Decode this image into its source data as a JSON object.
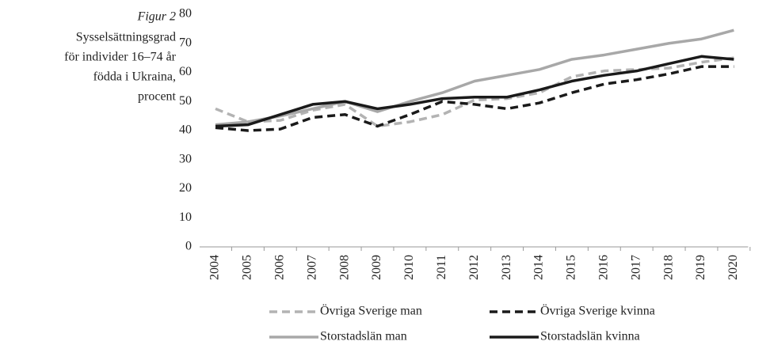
{
  "chart_data": {
    "type": "line",
    "title": "Figur 2",
    "subtitle": [
      "Sysselsättningsgrad",
      "för individer 16–74 år",
      "födda i Ukraina,",
      "procent"
    ],
    "categories": [
      "2004",
      "2005",
      "2006",
      "2007",
      "2008",
      "2009",
      "2010",
      "2011",
      "2012",
      "2013",
      "2014",
      "2015",
      "2016",
      "2017",
      "2018",
      "2019",
      "2020"
    ],
    "series": [
      {
        "name": "Övriga Sverige man",
        "color": "#b3b3b3",
        "dashed": true,
        "values": [
          47.5,
          43,
          43.5,
          47,
          49,
          41.5,
          43,
          45.5,
          50.5,
          51,
          53,
          58.5,
          60.5,
          61,
          61.5,
          63.5,
          65
        ]
      },
      {
        "name": "Övriga Sverige kvinna",
        "color": "#1a1a1a",
        "dashed": true,
        "values": [
          41,
          40,
          40.5,
          44.5,
          45.5,
          41.5,
          45.5,
          50,
          49,
          47.5,
          49.5,
          53,
          56,
          57.5,
          59.5,
          62,
          62
        ]
      },
      {
        "name": "Storstadslän man",
        "color": "#a8a8a8",
        "dashed": false,
        "values": [
          42,
          43,
          45,
          47.5,
          50,
          46.5,
          50,
          53,
          57,
          59,
          61,
          64.5,
          66,
          68,
          70,
          71.5,
          74.5
        ]
      },
      {
        "name": "Storstadslän kvinna",
        "color": "#1a1a1a",
        "dashed": false,
        "values": [
          41.5,
          42,
          45.5,
          49,
          50,
          47.5,
          49,
          51,
          51.5,
          51.5,
          54,
          57,
          59,
          60.5,
          63,
          65.5,
          64.5
        ]
      }
    ],
    "ylim": [
      0,
      80
    ],
    "yticks": [
      0,
      10,
      20,
      30,
      40,
      50,
      60,
      70,
      80
    ],
    "grid": false
  }
}
